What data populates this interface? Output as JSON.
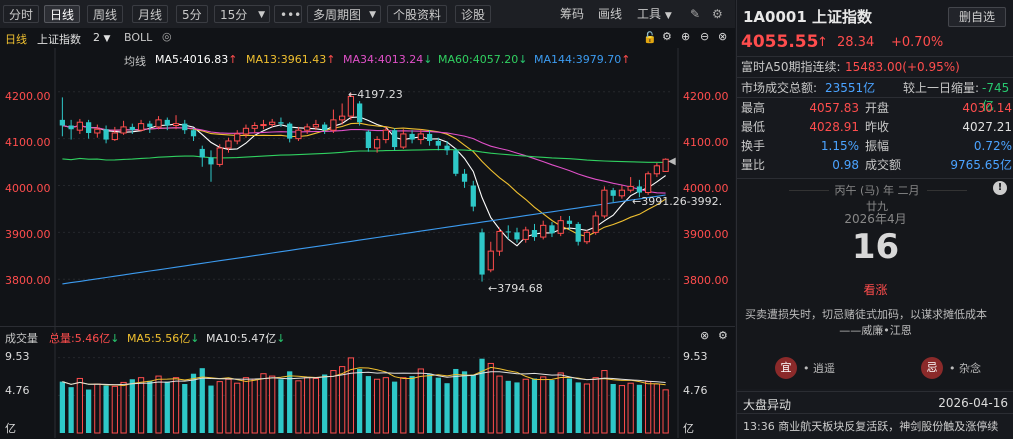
{
  "toolbar": {
    "items": [
      "分时",
      "日线",
      "周线",
      "月线",
      "5分",
      "15分",
      "•••",
      "多周期图",
      "个股资料",
      "诊股",
      "筹码",
      "画线",
      "工具"
    ],
    "active": "日线"
  },
  "chart_header": {
    "period": "日线",
    "name": "上证指数",
    "num": "2",
    "indicator": "BOLL"
  },
  "ma_legend": {
    "label": "均线",
    "ma5": "MA5:4016.83",
    "ma13": "MA13:3961.43",
    "ma34": "MA34:4013.24",
    "ma60": "MA60:4057.20",
    "ma144": "MA144:3979.70"
  },
  "price_axis": [
    "4200.00",
    "4100.00",
    "4000.00",
    "3900.00",
    "3800.00"
  ],
  "annotations": {
    "high": "←4197.23",
    "low": "←3794.68",
    "mid": "←3991.26-3992."
  },
  "volume_header": {
    "label": "成交量",
    "total": "总量:5.46亿",
    "ma5": "MA5:5.56亿",
    "ma10": "MA10:5.47亿"
  },
  "volume_axis": [
    "9.53",
    "4.76",
    "亿"
  ],
  "chart_data": {
    "type": "candlestick",
    "ylim": [
      3760,
      4240
    ],
    "candles": [
      {
        "o": 4140,
        "c": 4128,
        "h": 4188,
        "l": 4105
      },
      {
        "o": 4128,
        "c": 4120,
        "h": 4140,
        "l": 4098
      },
      {
        "o": 4118,
        "c": 4135,
        "h": 4142,
        "l": 4110
      },
      {
        "o": 4135,
        "c": 4112,
        "h": 4140,
        "l": 4100
      },
      {
        "o": 4112,
        "c": 4120,
        "h": 4130,
        "l": 4102
      },
      {
        "o": 4120,
        "c": 4098,
        "h": 4128,
        "l": 4090
      },
      {
        "o": 4098,
        "c": 4112,
        "h": 4125,
        "l": 4095
      },
      {
        "o": 4112,
        "c": 4125,
        "h": 4138,
        "l": 4108
      },
      {
        "o": 4125,
        "c": 4118,
        "h": 4132,
        "l": 4110
      },
      {
        "o": 4118,
        "c": 4132,
        "h": 4140,
        "l": 4115
      },
      {
        "o": 4132,
        "c": 4125,
        "h": 4138,
        "l": 4112
      },
      {
        "o": 4125,
        "c": 4140,
        "h": 4148,
        "l": 4120
      },
      {
        "o": 4140,
        "c": 4128,
        "h": 4145,
        "l": 4118
      },
      {
        "o": 4128,
        "c": 4132,
        "h": 4150,
        "l": 4120
      },
      {
        "o": 4132,
        "c": 4118,
        "h": 4140,
        "l": 4110
      },
      {
        "o": 4118,
        "c": 4105,
        "h": 4122,
        "l": 4095
      },
      {
        "o": 4078,
        "c": 4060,
        "h": 4085,
        "l": 4040
      },
      {
        "o": 4060,
        "c": 4045,
        "h": 4075,
        "l": 4008
      },
      {
        "o": 4045,
        "c": 4080,
        "h": 4088,
        "l": 4040
      },
      {
        "o": 4080,
        "c": 4095,
        "h": 4102,
        "l": 4070
      },
      {
        "o": 4095,
        "c": 4110,
        "h": 4118,
        "l": 4088
      },
      {
        "o": 4110,
        "c": 4122,
        "h": 4130,
        "l": 4102
      },
      {
        "o": 4122,
        "c": 4128,
        "h": 4135,
        "l": 4112
      },
      {
        "o": 4128,
        "c": 4130,
        "h": 4140,
        "l": 4120
      },
      {
        "o": 4130,
        "c": 4135,
        "h": 4142,
        "l": 4125
      },
      {
        "o": 4135,
        "c": 4132,
        "h": 4145,
        "l": 4125
      },
      {
        "o": 4132,
        "c": 4100,
        "h": 4135,
        "l": 4092
      },
      {
        "o": 4100,
        "c": 4118,
        "h": 4125,
        "l": 4095
      },
      {
        "o": 4118,
        "c": 4125,
        "h": 4132,
        "l": 4110
      },
      {
        "o": 4125,
        "c": 4130,
        "h": 4140,
        "l": 4118
      },
      {
        "o": 4130,
        "c": 4118,
        "h": 4135,
        "l": 4110
      },
      {
        "o": 4118,
        "c": 4140,
        "h": 4162,
        "l": 4112
      },
      {
        "o": 4140,
        "c": 4148,
        "h": 4175,
        "l": 4130
      },
      {
        "o": 4148,
        "c": 4190,
        "h": 4197,
        "l": 4140
      },
      {
        "o": 4175,
        "c": 4135,
        "h": 4180,
        "l": 4128
      },
      {
        "o": 4115,
        "c": 4080,
        "h": 4118,
        "l": 4072
      },
      {
        "o": 4080,
        "c": 4098,
        "h": 4105,
        "l": 4070
      },
      {
        "o": 4098,
        "c": 4118,
        "h": 4125,
        "l": 4090
      },
      {
        "o": 4118,
        "c": 4082,
        "h": 4122,
        "l": 4075
      },
      {
        "o": 4082,
        "c": 4110,
        "h": 4120,
        "l": 4078
      },
      {
        "o": 4110,
        "c": 4098,
        "h": 4118,
        "l": 4090
      },
      {
        "o": 4098,
        "c": 4110,
        "h": 4120,
        "l": 4088
      },
      {
        "o": 4110,
        "c": 4095,
        "h": 4118,
        "l": 4085
      },
      {
        "o": 4095,
        "c": 4085,
        "h": 4102,
        "l": 4075
      },
      {
        "o": 4085,
        "c": 4075,
        "h": 4095,
        "l": 4065
      },
      {
        "o": 4075,
        "c": 4025,
        "h": 4080,
        "l": 4020
      },
      {
        "o": 4025,
        "c": 4008,
        "h": 4035,
        "l": 3995
      },
      {
        "o": 4000,
        "c": 3955,
        "h": 4010,
        "l": 3945
      },
      {
        "o": 3900,
        "c": 3810,
        "h": 3908,
        "l": 3795
      },
      {
        "o": 3820,
        "c": 3860,
        "h": 3880,
        "l": 3815
      },
      {
        "o": 3860,
        "c": 3902,
        "h": 3910,
        "l": 3850
      },
      {
        "o": 3902,
        "c": 3900,
        "h": 3915,
        "l": 3885
      },
      {
        "o": 3900,
        "c": 3885,
        "h": 3910,
        "l": 3878
      },
      {
        "o": 3885,
        "c": 3905,
        "h": 3912,
        "l": 3878
      },
      {
        "o": 3905,
        "c": 3890,
        "h": 3918,
        "l": 3882
      },
      {
        "o": 3890,
        "c": 3915,
        "h": 3925,
        "l": 3885
      },
      {
        "o": 3915,
        "c": 3898,
        "h": 3922,
        "l": 3890
      },
      {
        "o": 3898,
        "c": 3925,
        "h": 3935,
        "l": 3892
      },
      {
        "o": 3925,
        "c": 3918,
        "h": 3935,
        "l": 3905
      },
      {
        "o": 3918,
        "c": 3880,
        "h": 3922,
        "l": 3872
      },
      {
        "o": 3880,
        "c": 3900,
        "h": 3905,
        "l": 3875
      },
      {
        "o": 3900,
        "c": 3935,
        "h": 3945,
        "l": 3895
      },
      {
        "o": 3935,
        "c": 3990,
        "h": 3998,
        "l": 3930
      },
      {
        "o": 3990,
        "c": 3978,
        "h": 3995,
        "l": 3965
      },
      {
        "o": 3978,
        "c": 3990,
        "h": 4000,
        "l": 3972
      },
      {
        "o": 3990,
        "c": 3998,
        "h": 4018,
        "l": 3985
      },
      {
        "o": 3998,
        "c": 3985,
        "h": 4012,
        "l": 3975
      },
      {
        "o": 3985,
        "c": 4025,
        "h": 4030,
        "l": 3980
      },
      {
        "o": 4025,
        "c": 4042,
        "h": 4048,
        "l": 4018
      },
      {
        "o": 4030,
        "c": 4056,
        "h": 4058,
        "l": 4029
      }
    ],
    "volumes": [
      6.5,
      5.8,
      6.9,
      5.5,
      6.2,
      6.0,
      5.9,
      6.4,
      6.8,
      7.0,
      6.6,
      7.2,
      6.5,
      7.0,
      6.2,
      7.5,
      8.2,
      6.0,
      6.5,
      6.8,
      6.3,
      7.0,
      6.8,
      7.5,
      7.2,
      6.8,
      7.8,
      6.6,
      7.0,
      6.9,
      7.4,
      7.9,
      8.4,
      9.5,
      8.1,
      7.2,
      6.8,
      7.0,
      6.5,
      7.0,
      7.2,
      8.1,
      7.5,
      7.0,
      6.3,
      8.1,
      7.8,
      7.4,
      9.4,
      8.8,
      7.2,
      6.6,
      6.4,
      6.8,
      6.9,
      7.1,
      6.7,
      7.6,
      6.9,
      6.4,
      6.2,
      7.0,
      7.9,
      6.2,
      6.0,
      6.3,
      6.1,
      6.5,
      6.2,
      5.46
    ],
    "vol_ylim": [
      0,
      10.5
    ]
  },
  "quote": {
    "code_name": "1A0001 上证指数",
    "delete_btn": "删自选",
    "price": "4055.55",
    "arrow": "↑",
    "change": "28.34",
    "pct": "+0.70%",
    "a50_label": "富时A50期指连续:",
    "a50_value": "15483.00(+0.95%)",
    "turnover_label": "市场成交总额:",
    "turnover_value": "23551亿",
    "vol_change_label": "较上一日缩量:",
    "vol_change_value": "-745亿",
    "rows": [
      {
        "l1": "最高",
        "v1": "4057.83",
        "l2": "开盘",
        "v2": "4030.14"
      },
      {
        "l1": "最低",
        "v1": "4028.91",
        "l2": "昨收",
        "v2": "4027.21"
      },
      {
        "l1": "换手",
        "v1": "1.15%",
        "l2": "振幅",
        "v2": "0.72%"
      },
      {
        "l1": "量比",
        "v1": "0.98",
        "l2": "成交额",
        "v2": "9765.65亿"
      }
    ]
  },
  "calendar": {
    "lunar": "丙午 (马) 年 二月廿九",
    "month": "2026年4月",
    "day": "16",
    "predict": "看涨",
    "quote": "买卖遭损失时，切忌赌徒式加码，以谋求摊低成本",
    "author": "——威廉•江恩",
    "yi_label": "宜",
    "yi_text": "• 逍遥",
    "ji_label": "忌",
    "ji_text": "• 杂念"
  },
  "news": {
    "title": "大盘异动",
    "date": "2026-04-16",
    "item": "13:36 商业航天板块反复活跃，神剑股份触及涨停续"
  }
}
